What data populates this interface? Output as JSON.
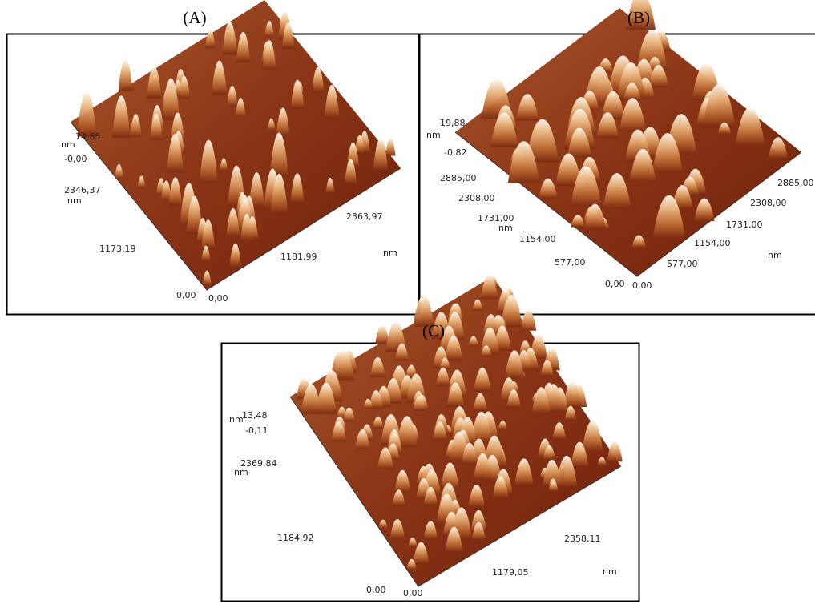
{
  "panels": [
    {
      "label": "(A)",
      "z_unit": "nm",
      "z_max": "74,65",
      "z_min": "-0,00",
      "y_ticks": [
        "2346,37",
        "1173,19",
        "0,00"
      ],
      "y_unit": "nm",
      "x_ticks": [
        "0,00",
        "1181,99",
        "2363,97"
      ],
      "x_unit": "nm"
    },
    {
      "label": "(B)",
      "z_unit": "nm",
      "z_max": "19,88",
      "z_min": "-0,82",
      "y_ticks": [
        "2885,00",
        "2308,00",
        "1731,00",
        "1154,00",
        "577,00",
        "0,00"
      ],
      "y_unit": "nm",
      "x_ticks": [
        "0,00",
        "577,00",
        "1154,00",
        "1731,00",
        "2308,00",
        "2885,00"
      ],
      "x_unit": "nm"
    },
    {
      "label": "(C)",
      "z_unit": "nm",
      "z_max": "13,48",
      "z_min": "-0,11",
      "y_ticks": [
        "2369,84",
        "1184,92",
        "0,00"
      ],
      "y_unit": "nm",
      "x_ticks": [
        "0,00",
        "1179,05",
        "2358,11"
      ],
      "x_unit": "nm"
    }
  ]
}
